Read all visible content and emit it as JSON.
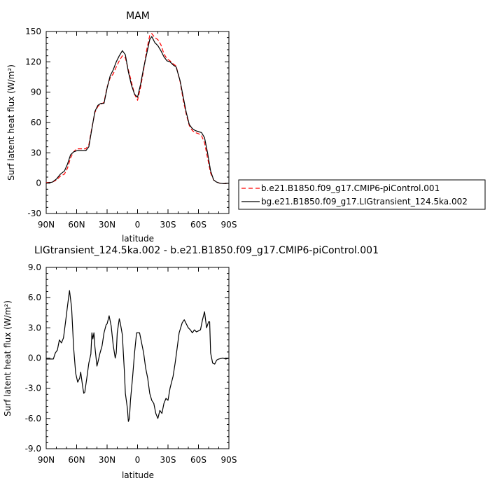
{
  "chart_data": [
    {
      "type": "line",
      "title": "MAM",
      "xlabel": "latitude",
      "ylabel": "Surf latent heat flux (W/m²)",
      "x_ticks": [
        90,
        60,
        30,
        0,
        -30,
        -60,
        -90
      ],
      "x_tick_labels": [
        "90N",
        "60N",
        "30N",
        "0",
        "30S",
        "60S",
        "90S"
      ],
      "xlim": [
        90,
        -90
      ],
      "y_ticks": [
        -30,
        0,
        30,
        60,
        90,
        120,
        150
      ],
      "y_tick_labels": [
        "-30",
        "0",
        "30",
        "60",
        "90",
        "120",
        "150"
      ],
      "ylim": [
        -30,
        150
      ],
      "grid": false,
      "legend_position": "right, outside plot area",
      "series": [
        {
          "name": "b.e21.B1850.f09_g17.CMIP6-piControl.001",
          "color": "#ff0000",
          "dashed": true,
          "points": [
            [
              90,
              0.5
            ],
            [
              84,
              1
            ],
            [
              80,
              3
            ],
            [
              76,
              7
            ],
            [
              72,
              9
            ],
            [
              69,
              15
            ],
            [
              66,
              25
            ],
            [
              63,
              31
            ],
            [
              60,
              34
            ],
            [
              55,
              34
            ],
            [
              51,
              34
            ],
            [
              48,
              38
            ],
            [
              45,
              55
            ],
            [
              42,
              70
            ],
            [
              39,
              76
            ],
            [
              36,
              78
            ],
            [
              33,
              80
            ],
            [
              30,
              95
            ],
            [
              27,
              104
            ],
            [
              24,
              108
            ],
            [
              21,
              115
            ],
            [
              18,
              121
            ],
            [
              15,
              126
            ],
            [
              12,
              124
            ],
            [
              9,
              112
            ],
            [
              6,
              100
            ],
            [
              3,
              88
            ],
            [
              0,
              82
            ],
            [
              -3,
              95
            ],
            [
              -6,
              112
            ],
            [
              -9,
              132
            ],
            [
              -12,
              146
            ],
            [
              -14,
              148
            ],
            [
              -17,
              144
            ],
            [
              -20,
              142
            ],
            [
              -23,
              137
            ],
            [
              -26,
              128
            ],
            [
              -29,
              123
            ],
            [
              -32,
              121
            ],
            [
              -35,
              118
            ],
            [
              -38,
              116
            ],
            [
              -42,
              100
            ],
            [
              -45,
              82
            ],
            [
              -48,
              68
            ],
            [
              -51,
              57
            ],
            [
              -54,
              52
            ],
            [
              -57,
              50
            ],
            [
              -60,
              49
            ],
            [
              -63,
              47
            ],
            [
              -66,
              40
            ],
            [
              -69,
              25
            ],
            [
              -72,
              10
            ],
            [
              -75,
              3
            ],
            [
              -78,
              1
            ],
            [
              -81,
              0
            ],
            [
              -85,
              -0.5
            ],
            [
              -90,
              0
            ]
          ]
        },
        {
          "name": "bg.e21.B1850.f09_g17.LIGtransient_124.5ka.002",
          "color": "#000000",
          "dashed": false,
          "points": [
            [
              90,
              0
            ],
            [
              84,
              1
            ],
            [
              80,
              4
            ],
            [
              76,
              9
            ],
            [
              72,
              12
            ],
            [
              69,
              19
            ],
            [
              66,
              28
            ],
            [
              63,
              31
            ],
            [
              60,
              32
            ],
            [
              55,
              32
            ],
            [
              51,
              32
            ],
            [
              48,
              36
            ],
            [
              45,
              54
            ],
            [
              42,
              71
            ],
            [
              39,
              77
            ],
            [
              36,
              79
            ],
            [
              33,
              79
            ],
            [
              30,
              94
            ],
            [
              27,
              106
            ],
            [
              24,
              112
            ],
            [
              21,
              120
            ],
            [
              18,
              126
            ],
            [
              15,
              131
            ],
            [
              12,
              127
            ],
            [
              9,
              110
            ],
            [
              6,
              97
            ],
            [
              3,
              88
            ],
            [
              0,
              85
            ],
            [
              -3,
              98
            ],
            [
              -6,
              114
            ],
            [
              -9,
              128
            ],
            [
              -12,
              142
            ],
            [
              -14,
              145
            ],
            [
              -17,
              139
            ],
            [
              -20,
              136
            ],
            [
              -23,
              131
            ],
            [
              -26,
              125
            ],
            [
              -29,
              121
            ],
            [
              -32,
              120
            ],
            [
              -35,
              117
            ],
            [
              -38,
              115
            ],
            [
              -42,
              101
            ],
            [
              -45,
              85
            ],
            [
              -48,
              70
            ],
            [
              -51,
              58
            ],
            [
              -54,
              54
            ],
            [
              -57,
              52
            ],
            [
              -60,
              51
            ],
            [
              -63,
              50
            ],
            [
              -66,
              45
            ],
            [
              -69,
              30
            ],
            [
              -72,
              12
            ],
            [
              -75,
              3
            ],
            [
              -78,
              1
            ],
            [
              -81,
              0
            ],
            [
              -85,
              -0.5
            ],
            [
              -90,
              0
            ]
          ]
        }
      ]
    },
    {
      "type": "line",
      "title": "LIGtransient_124.5ka.002 - b.e21.B1850.f09_g17.CMIP6-piControl.001",
      "xlabel": "latitude",
      "ylabel": "Surf latent heat flux (W/m²)",
      "x_ticks": [
        90,
        60,
        30,
        0,
        -30,
        -60,
        -90
      ],
      "x_tick_labels": [
        "90N",
        "60N",
        "30N",
        "0",
        "30S",
        "60S",
        "90S"
      ],
      "xlim": [
        90,
        -90
      ],
      "y_ticks": [
        -9,
        -6,
        -3,
        0,
        3,
        6,
        9
      ],
      "y_tick_labels": [
        "-9.0",
        "-6.0",
        "-3.0",
        "0.0",
        "3.0",
        "6.0",
        "9.0"
      ],
      "ylim": [
        -9,
        9
      ],
      "grid": false,
      "series": [
        {
          "color": "#000000",
          "dashed": false,
          "points": [
            [
              90,
              -0.1
            ],
            [
              83,
              -0.1
            ],
            [
              81,
              0.5
            ],
            [
              79,
              0.8
            ],
            [
              77,
              1.8
            ],
            [
              75,
              1.5
            ],
            [
              73,
              2.0
            ],
            [
              71,
              3.5
            ],
            [
              69,
              5.2
            ],
            [
              67,
              6.7
            ],
            [
              65,
              5.0
            ],
            [
              63,
              1.0
            ],
            [
              61,
              -1.5
            ],
            [
              59,
              -2.4
            ],
            [
              57,
              -2.0
            ],
            [
              56,
              -1.4
            ],
            [
              54,
              -2.9
            ],
            [
              53,
              -3.5
            ],
            [
              52,
              -3.4
            ],
            [
              50,
              -2.0
            ],
            [
              48,
              -0.5
            ],
            [
              46,
              0.4
            ],
            [
              45,
              2.5
            ],
            [
              44,
              1.9
            ],
            [
              43,
              2.5
            ],
            [
              42,
              1.1
            ],
            [
              40,
              -0.8
            ],
            [
              39,
              -0.4
            ],
            [
              37,
              0.5
            ],
            [
              35,
              1.2
            ],
            [
              33,
              2.5
            ],
            [
              31,
              3.3
            ],
            [
              30,
              3.4
            ],
            [
              28,
              4.2
            ],
            [
              26,
              3.2
            ],
            [
              24,
              1.3
            ],
            [
              22,
              0.0
            ],
            [
              21,
              0.5
            ],
            [
              20,
              2.5
            ],
            [
              18,
              3.9
            ],
            [
              17,
              3.5
            ],
            [
              15,
              2.3
            ],
            [
              14,
              0.5
            ],
            [
              13,
              -1.2
            ],
            [
              12,
              -3.5
            ],
            [
              10,
              -5.0
            ],
            [
              9,
              -6.3
            ],
            [
              8,
              -6.0
            ],
            [
              7,
              -4.2
            ],
            [
              5,
              -2.0
            ],
            [
              3,
              0.5
            ],
            [
              1,
              2.5
            ],
            [
              -2,
              2.5
            ],
            [
              -4,
              1.5
            ],
            [
              -6,
              0.5
            ],
            [
              -8,
              -1.0
            ],
            [
              -10,
              -2.0
            ],
            [
              -12,
              -3.5
            ],
            [
              -14,
              -4.2
            ],
            [
              -16,
              -4.5
            ],
            [
              -18,
              -5.5
            ],
            [
              -20,
              -6.0
            ],
            [
              -22,
              -5.2
            ],
            [
              -24,
              -5.5
            ],
            [
              -26,
              -4.5
            ],
            [
              -28,
              -4.0
            ],
            [
              -30,
              -4.2
            ],
            [
              -32,
              -3.0
            ],
            [
              -35,
              -1.8
            ],
            [
              -37,
              -0.5
            ],
            [
              -39,
              1.0
            ],
            [
              -41,
              2.5
            ],
            [
              -44,
              3.5
            ],
            [
              -46,
              3.8
            ],
            [
              -48,
              3.4
            ],
            [
              -50,
              3.0
            ],
            [
              -52,
              2.8
            ],
            [
              -54,
              2.5
            ],
            [
              -56,
              2.8
            ],
            [
              -58,
              2.6
            ],
            [
              -60,
              2.7
            ],
            [
              -62,
              2.8
            ],
            [
              -64,
              3.8
            ],
            [
              -66,
              4.6
            ],
            [
              -68,
              3.0
            ],
            [
              -70,
              3.6
            ],
            [
              -71,
              3.6
            ],
            [
              -72,
              0.5
            ],
            [
              -74,
              -0.5
            ],
            [
              -76,
              -0.6
            ],
            [
              -78,
              -0.2
            ],
            [
              -80,
              -0.1
            ],
            [
              -84,
              0.0
            ],
            [
              -87,
              -0.1
            ],
            [
              -90,
              0.0
            ]
          ]
        }
      ]
    }
  ]
}
